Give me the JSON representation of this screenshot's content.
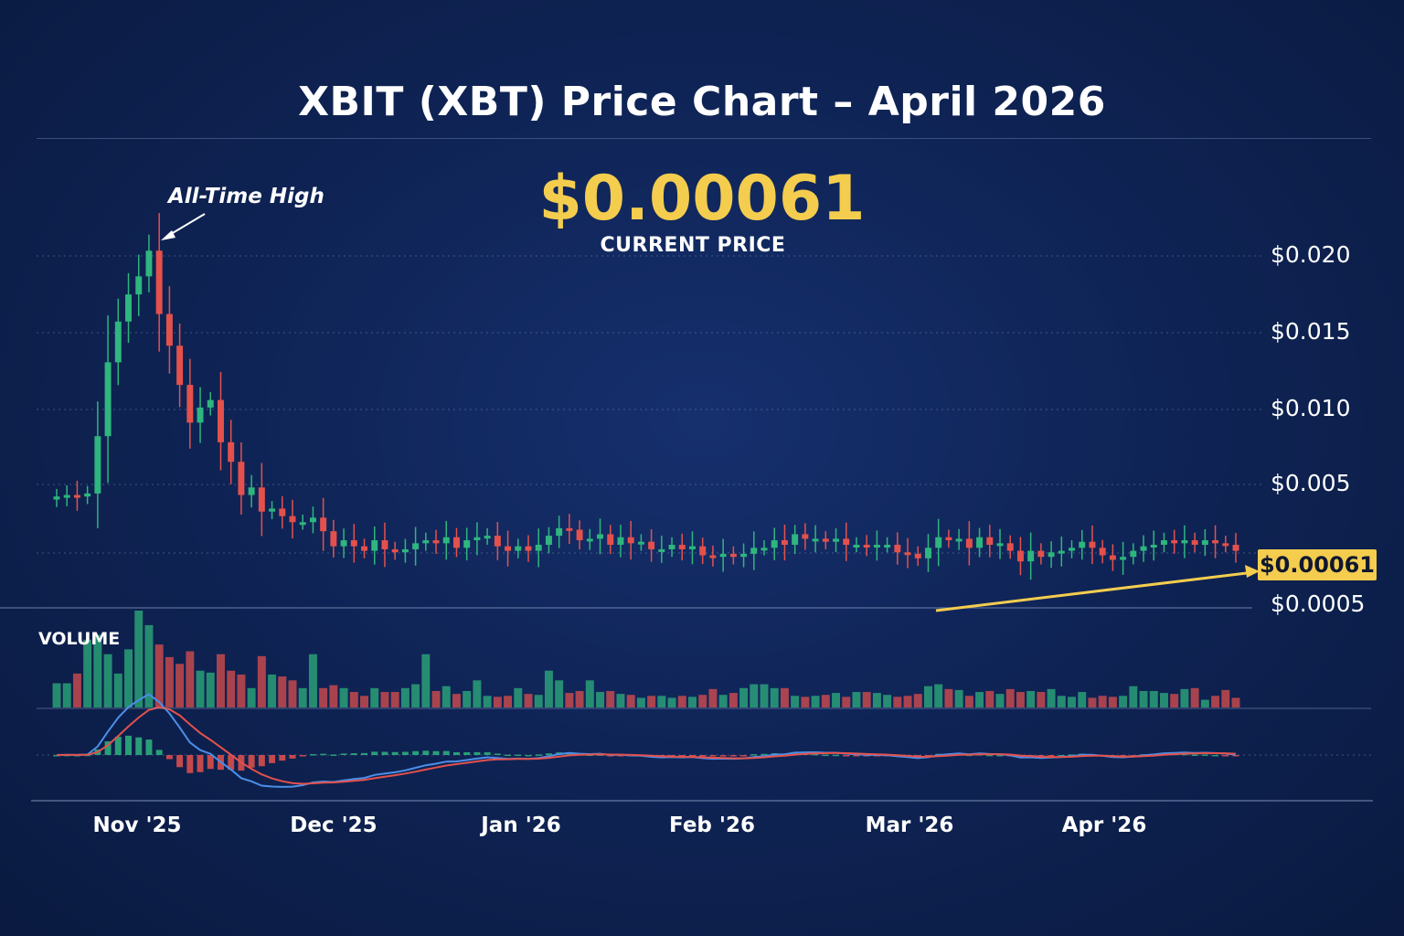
{
  "chart_data": {
    "type": "candlestick",
    "title": "XBIT (XBT) Price Chart – April 2026",
    "current_price": "$0.00061",
    "current_price_label": "CURRENT PRICE",
    "annotation": "All-Time High",
    "y_ticks": [
      "$0.020",
      "$0.015",
      "$0.010",
      "$0.005",
      "$0.0005"
    ],
    "x_ticks": [
      "Nov '25",
      "Dec '25",
      "Jan '26",
      "Feb '26",
      "Mar '26",
      "Apr '26"
    ],
    "volume_label": "VOLUME",
    "ylim": [
      0.0005,
      0.02
    ],
    "grid": true,
    "colors": {
      "up": "#2fb57e",
      "down": "#e4514c",
      "highlight": "#f4cd4e",
      "macd_line": "#4b8fe8",
      "signal_line": "#e4514c"
    },
    "closes": [
      0.0042,
      0.0043,
      0.0042,
      0.0044,
      0.0082,
      0.0131,
      0.0158,
      0.0176,
      0.0188,
      0.0205,
      0.0163,
      0.0142,
      0.0116,
      0.0091,
      0.0101,
      0.0106,
      0.0078,
      0.0065,
      0.0043,
      0.0048,
      0.0032,
      0.0034,
      0.0029,
      0.0025,
      0.0025,
      0.0028,
      0.0019,
      0.0009,
      0.0013,
      0.0009,
      0.0006,
      0.0013,
      0.0007,
      0.0005,
      0.0007,
      0.0011,
      0.0013,
      0.0011,
      0.0015,
      0.0008,
      0.0013,
      0.0015,
      0.0016,
      0.0009,
      0.0006,
      0.0009,
      0.0006,
      0.001,
      0.0016,
      0.0021,
      0.002,
      0.0013,
      0.0014,
      0.0017,
      0.001,
      0.0015,
      0.0011,
      0.0012,
      0.0007,
      0.0007,
      0.001,
      0.0007,
      0.0009,
      0.0003,
      0.0002,
      0.0004,
      0.0002,
      0.0004,
      0.0008,
      0.0008,
      0.0013,
      0.001,
      0.0017,
      0.0014,
      0.0014,
      0.0012,
      0.0014,
      0.001,
      0.001,
      0.0009,
      0.001,
      0.001,
      0.0005,
      0.0004,
      0.0001,
      0.0008,
      0.0015,
      0.0013,
      0.0014,
      0.0008,
      0.0015,
      0.001,
      0.0011,
      0.0006,
      -0.0001,
      0.0006,
      0.0002,
      0.0005,
      0.0006,
      0.0008,
      0.0012,
      0.0008,
      0.0003,
      0.0,
      0.0002,
      0.0006,
      0.0009,
      0.001,
      0.0013,
      0.0011,
      0.0013,
      0.001,
      0.0013,
      0.0011,
      0.001,
      0.0006
    ],
    "volume_relative": [
      0.25,
      0.25,
      0.35,
      0.7,
      0.75,
      0.55,
      0.35,
      0.6,
      1.0,
      0.85,
      0.65,
      0.52,
      0.45,
      0.58,
      0.38,
      0.36,
      0.55,
      0.38,
      0.34,
      0.2,
      0.53,
      0.34,
      0.32,
      0.28,
      0.2,
      0.55,
      0.2,
      0.23,
      0.2,
      0.16,
      0.12,
      0.2,
      0.16,
      0.16,
      0.2,
      0.24,
      0.55,
      0.17,
      0.22,
      0.14,
      0.17,
      0.28,
      0.12,
      0.11,
      0.12,
      0.2,
      0.14,
      0.13,
      0.38,
      0.28,
      0.15,
      0.17,
      0.28,
      0.16,
      0.17,
      0.14,
      0.13,
      0.1,
      0.12,
      0.12,
      0.1,
      0.12,
      0.11,
      0.13,
      0.19,
      0.13,
      0.15,
      0.2,
      0.24,
      0.24,
      0.2,
      0.2,
      0.12,
      0.11,
      0.12,
      0.13,
      0.15,
      0.11,
      0.16,
      0.16,
      0.15,
      0.13,
      0.11,
      0.12,
      0.14,
      0.22,
      0.24,
      0.19,
      0.18,
      0.12,
      0.16,
      0.17,
      0.14,
      0.19,
      0.16,
      0.17,
      0.16,
      0.19,
      0.12,
      0.11,
      0.16,
      0.1,
      0.12,
      0.11,
      0.12,
      0.22,
      0.17,
      0.17,
      0.15,
      0.14,
      0.19,
      0.2,
      0.08,
      0.12,
      0.18,
      0.1
    ]
  }
}
